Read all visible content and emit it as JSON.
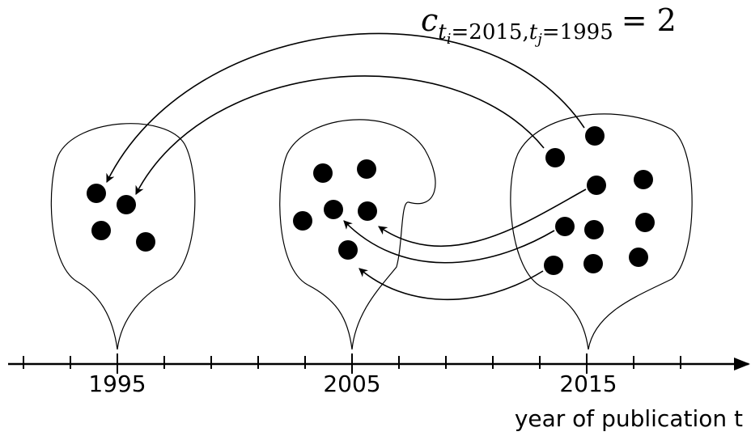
{
  "formula": {
    "symbol": "c",
    "subscript_parts": [
      "t",
      "i",
      "=2015,",
      "t",
      "j",
      "=1995"
    ],
    "rhs": "= 2"
  },
  "axis": {
    "labels": [
      "1995",
      "2005",
      "2015"
    ],
    "title": "year of publication t"
  }
}
